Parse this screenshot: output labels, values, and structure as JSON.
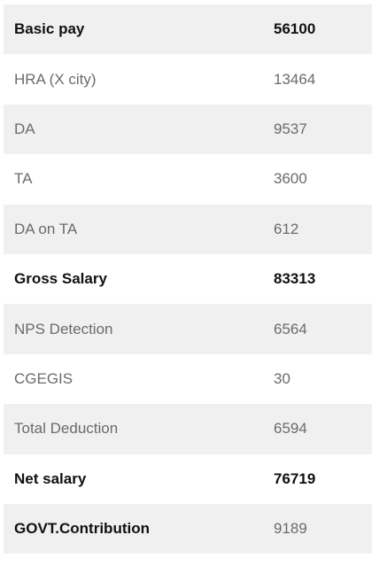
{
  "rows": [
    {
      "label": "Basic pay",
      "value": "56100"
    },
    {
      "label": "HRA (X city)",
      "value": "13464"
    },
    {
      "label": "DA",
      "value": "9537"
    },
    {
      "label": "TA",
      "value": "3600"
    },
    {
      "label": "DA on TA",
      "value": "612"
    },
    {
      "label": "Gross Salary",
      "value": "83313"
    },
    {
      "label": "NPS Detection",
      "value": "6564"
    },
    {
      "label": "CGEGIS",
      "value": "30"
    },
    {
      "label": "Total Deduction",
      "value": "6594"
    },
    {
      "label": "Net salary",
      "value": "76719"
    },
    {
      "label": "GOVT.Contribution",
      "value": "9189"
    }
  ]
}
